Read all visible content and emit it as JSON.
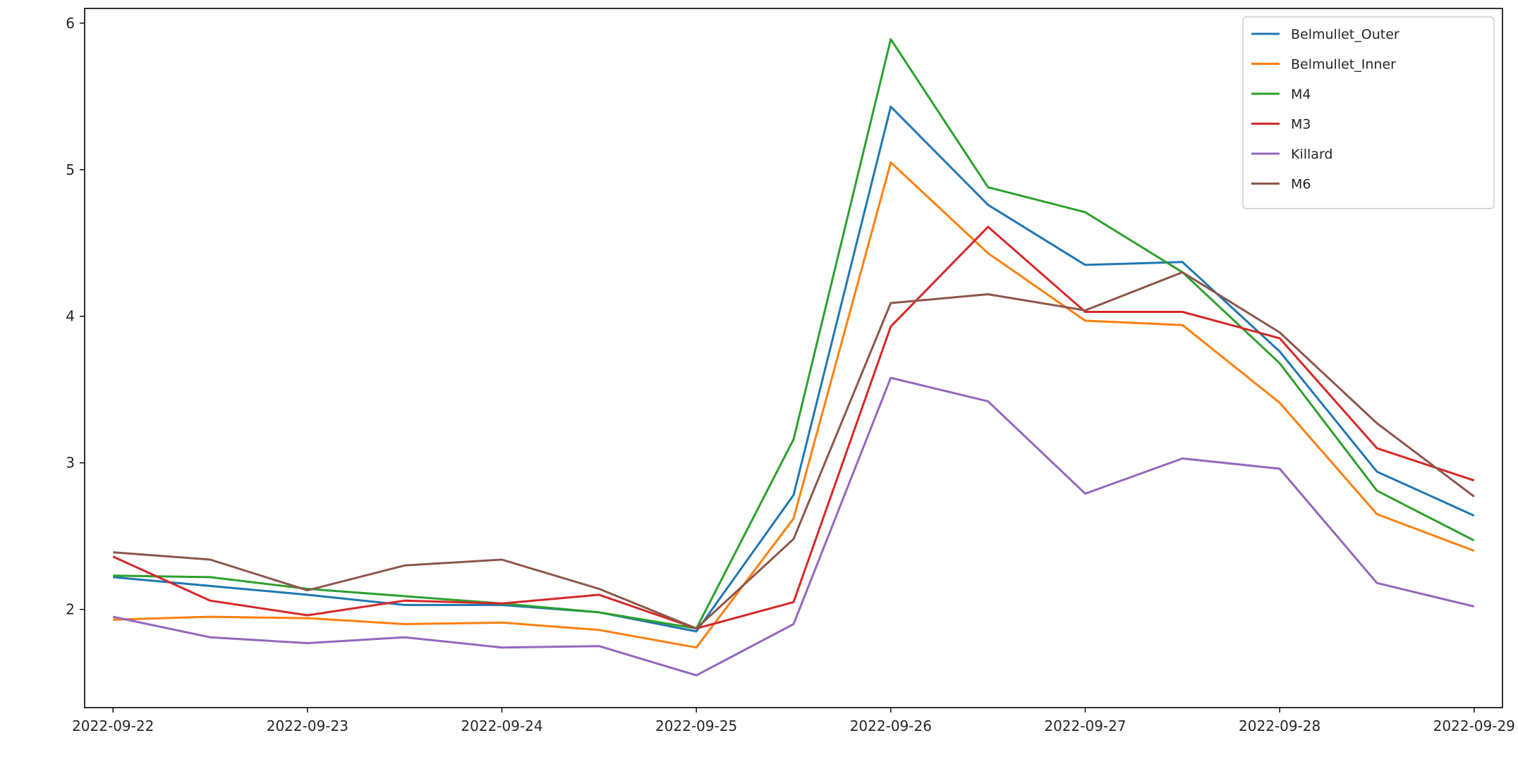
{
  "chart_data": {
    "type": "line",
    "title": "",
    "xlabel": "",
    "ylabel": "",
    "x": [
      "2022-09-22 00:00",
      "2022-09-22 12:00",
      "2022-09-23 00:00",
      "2022-09-23 12:00",
      "2022-09-24 00:00",
      "2022-09-24 12:00",
      "2022-09-25 00:00",
      "2022-09-25 12:00",
      "2022-09-26 00:00",
      "2022-09-26 12:00",
      "2022-09-27 00:00",
      "2022-09-27 12:00",
      "2022-09-28 00:00",
      "2022-09-28 12:00",
      "2022-09-29 00:00"
    ],
    "xticks": [
      "2022-09-22",
      "2022-09-23",
      "2022-09-24",
      "2022-09-25",
      "2022-09-26",
      "2022-09-27",
      "2022-09-28",
      "2022-09-29"
    ],
    "xlim": [
      "2022-09-21 20:30",
      "2022-09-29 03:30"
    ],
    "yticks": [
      "2",
      "3",
      "4",
      "5",
      "6"
    ],
    "ylim": [
      1.33,
      6.1
    ],
    "grid": false,
    "legend_position": "top-right",
    "series": [
      {
        "name": "Belmullet_Outer",
        "color": "#1f77b4",
        "values": [
          2.22,
          2.16,
          2.1,
          2.03,
          2.03,
          1.98,
          1.85,
          2.78,
          5.43,
          4.76,
          4.35,
          4.37,
          3.76,
          2.94,
          2.64
        ]
      },
      {
        "name": "Belmullet_Inner",
        "color": "#ff7f0e",
        "values": [
          1.93,
          1.95,
          1.94,
          1.9,
          1.91,
          1.86,
          1.74,
          2.62,
          5.05,
          4.43,
          3.97,
          3.94,
          3.41,
          2.65,
          2.4
        ]
      },
      {
        "name": "M4",
        "color": "#2ca02c",
        "values": [
          2.23,
          2.22,
          2.14,
          2.09,
          2.04,
          1.98,
          1.87,
          3.16,
          5.89,
          4.88,
          4.71,
          4.3,
          3.68,
          2.81,
          2.47
        ]
      },
      {
        "name": "M3",
        "color": "#d62728",
        "values": [
          2.36,
          2.06,
          1.96,
          2.06,
          2.04,
          2.1,
          1.87,
          2.05,
          3.93,
          4.61,
          4.03,
          4.03,
          3.85,
          3.1,
          2.88
        ]
      },
      {
        "name": "Killard",
        "color": "#9467bd",
        "values": [
          1.95,
          1.81,
          1.77,
          1.81,
          1.74,
          1.75,
          1.55,
          1.9,
          3.58,
          3.42,
          2.79,
          3.03,
          2.96,
          2.18,
          2.02
        ]
      },
      {
        "name": "M6",
        "color": "#8c564b",
        "values": [
          2.39,
          2.34,
          2.13,
          2.3,
          2.34,
          2.14,
          1.87,
          2.48,
          4.09,
          4.15,
          4.04,
          4.3,
          3.89,
          3.27,
          2.77
        ]
      }
    ]
  }
}
